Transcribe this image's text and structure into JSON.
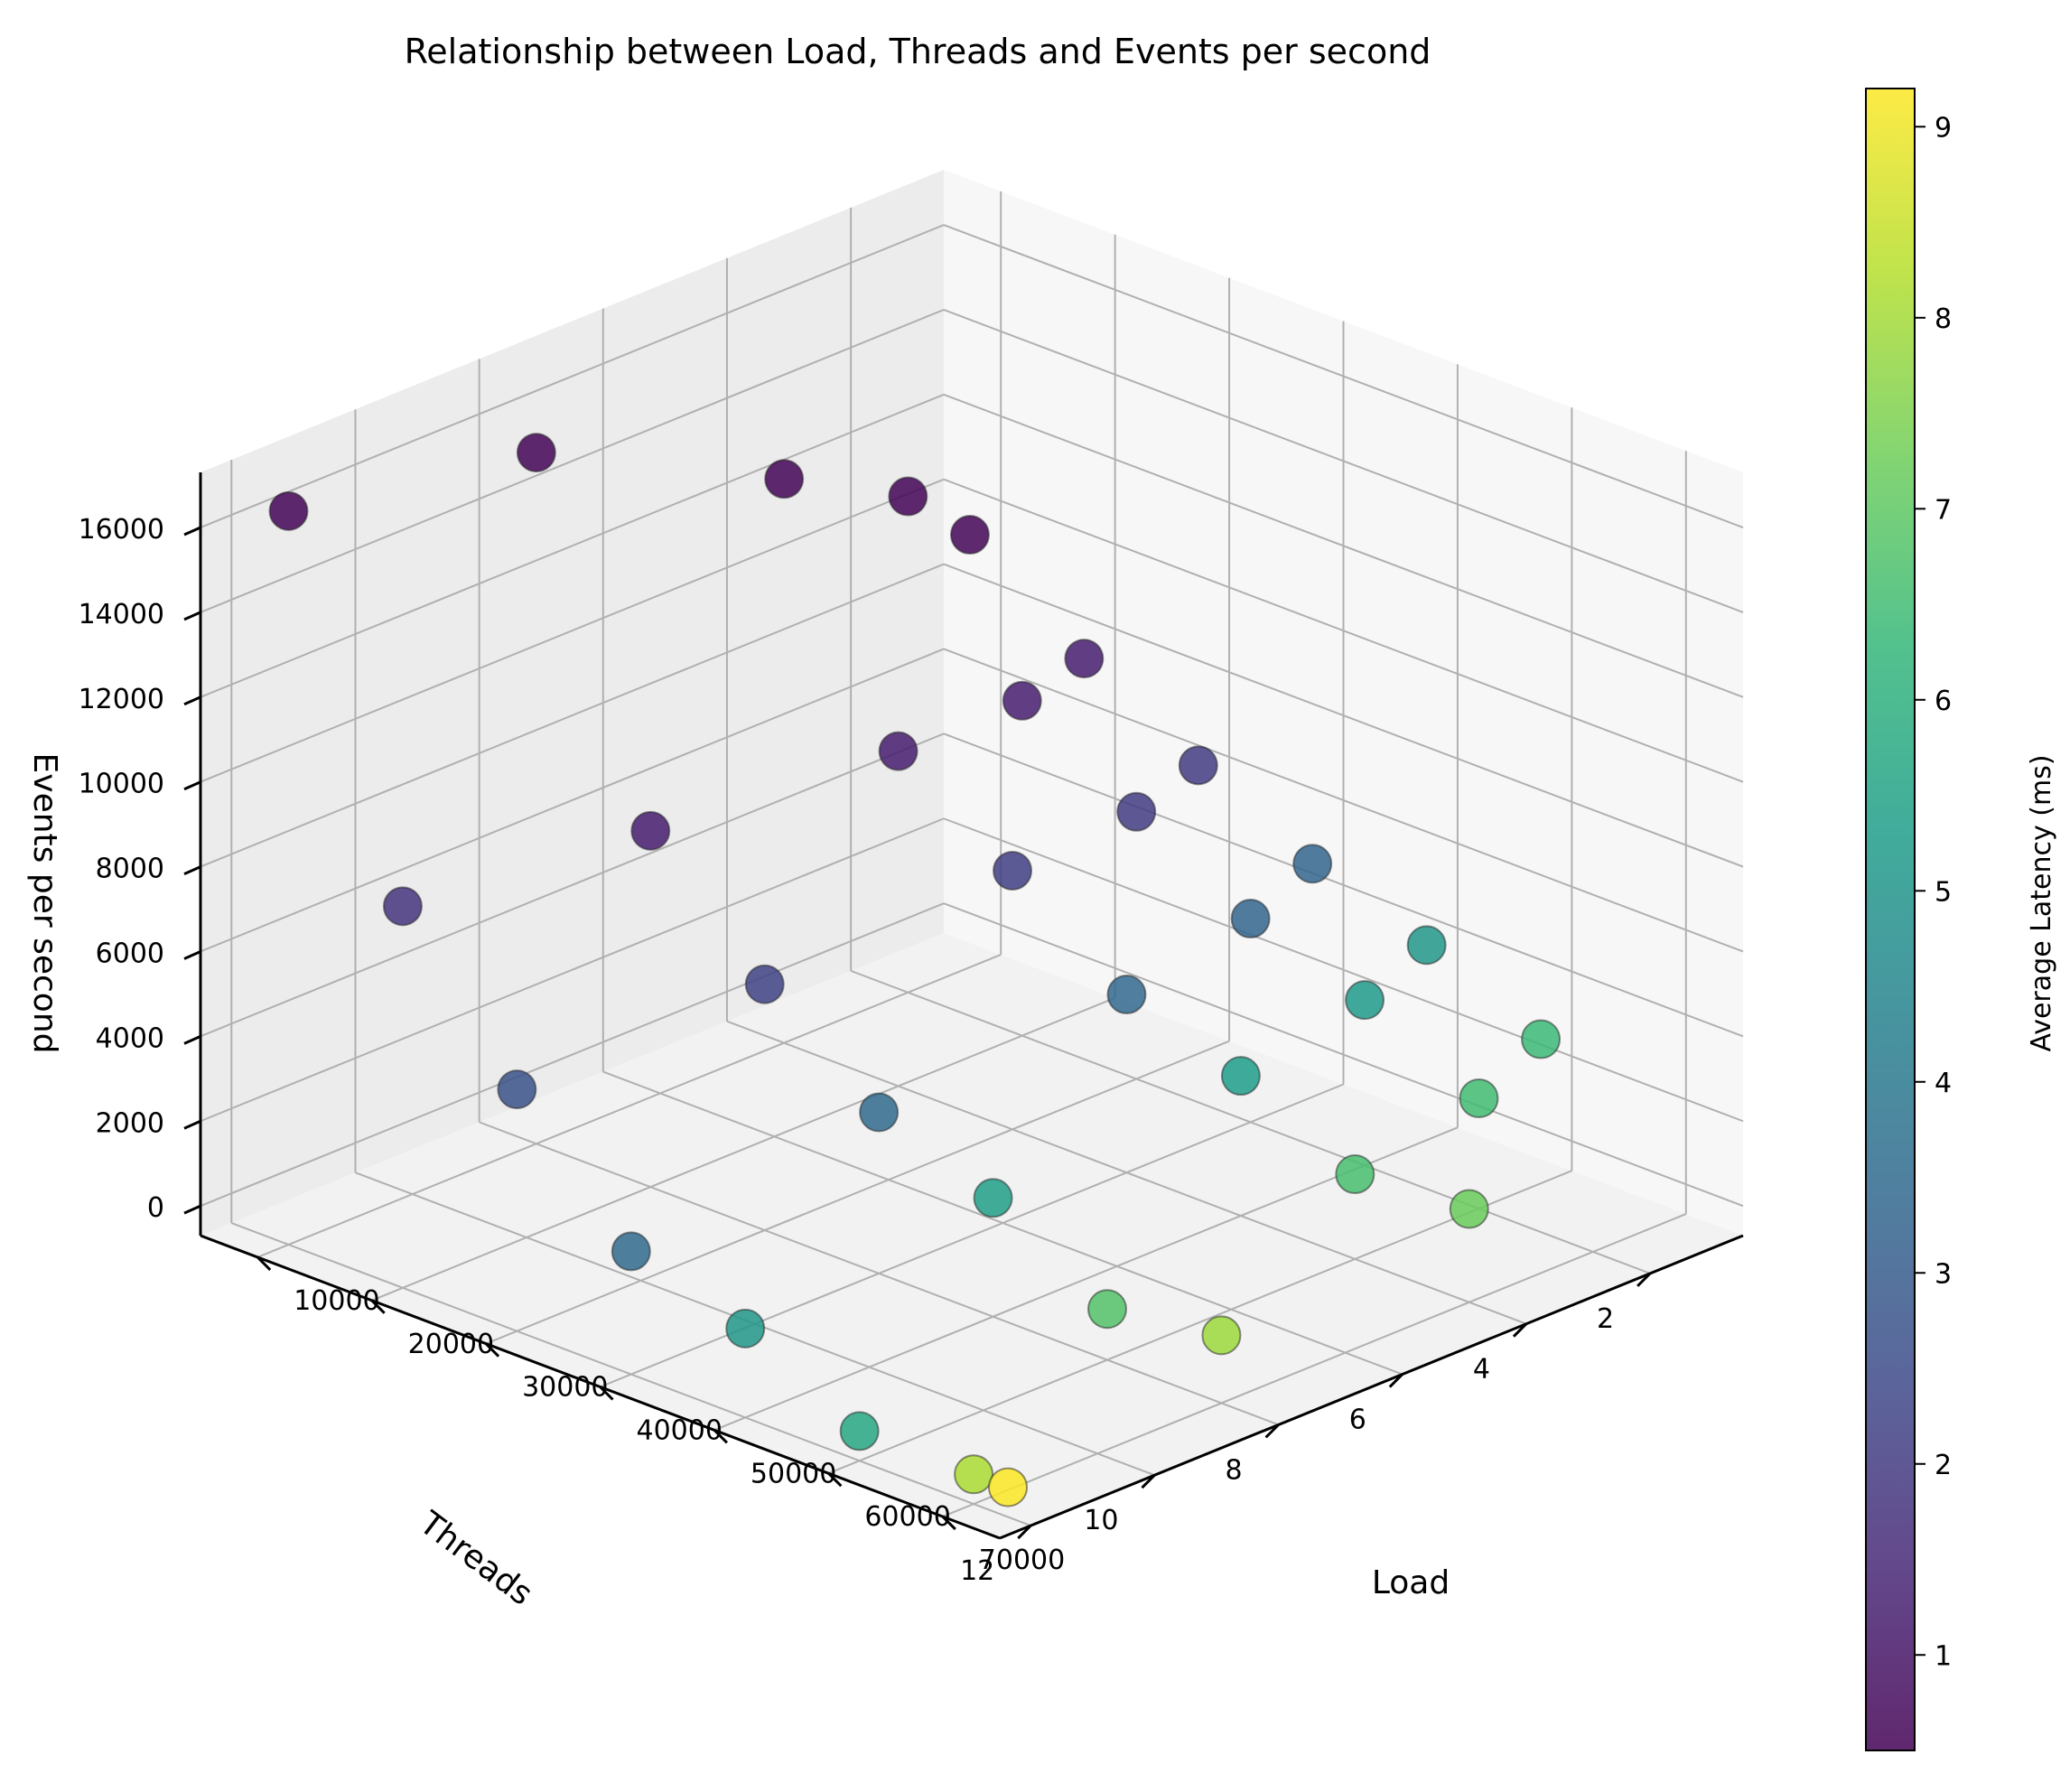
{
  "chart_data": {
    "type": "scatter",
    "title": "Relationship between Load, Threads and Events per second",
    "xlabel": "Load",
    "ylabel": "Threads",
    "zlabel": "Events per second",
    "colorbar_label": "Average Latency (ms)",
    "xlim": [
      5000,
      75000
    ],
    "ylim": [
      0.5,
      12.5
    ],
    "zlim": [
      -700,
      17300
    ],
    "clim": [
      0.5,
      9.2
    ],
    "x_ticks": [
      10000,
      20000,
      30000,
      40000,
      50000,
      60000,
      70000
    ],
    "y_ticks": [
      2,
      4,
      6,
      8,
      10,
      12
    ],
    "z_ticks": [
      0,
      2000,
      4000,
      6000,
      8000,
      10000,
      12000,
      14000,
      16000
    ],
    "colorbar_ticks": [
      1,
      2,
      3,
      4,
      5,
      6,
      7,
      8,
      9
    ],
    "grid": true,
    "colormap": "viridis",
    "series": [
      {
        "points": [
          {
            "x": 10000,
            "y": 1,
            "z": 9500,
            "c": 0.6
          },
          {
            "x": 10000,
            "y": 2,
            "z": 11000,
            "c": 0.6
          },
          {
            "x": 10000,
            "y": 4,
            "z": 12600,
            "c": 0.6
          },
          {
            "x": 10000,
            "y": 8,
            "z": 15600,
            "c": 0.6
          },
          {
            "x": 10000,
            "y": 12,
            "z": 16600,
            "c": 0.6
          },
          {
            "x": 20000,
            "y": 1,
            "z": 7600,
            "c": 1.2
          },
          {
            "x": 20000,
            "y": 2,
            "z": 7200,
            "c": 1.2
          },
          {
            "x": 20000,
            "y": 4,
            "z": 7200,
            "c": 1.2
          },
          {
            "x": 20000,
            "y": 8,
            "z": 7700,
            "c": 1.2
          },
          {
            "x": 20000,
            "y": 12,
            "z": 8300,
            "c": 1.8
          },
          {
            "x": 30000,
            "y": 1,
            "z": 6100,
            "c": 2.0
          },
          {
            "x": 30000,
            "y": 2,
            "z": 5600,
            "c": 2.0
          },
          {
            "x": 30000,
            "y": 4,
            "z": 5400,
            "c": 2.1
          },
          {
            "x": 30000,
            "y": 8,
            "z": 5100,
            "c": 2.2
          },
          {
            "x": 30000,
            "y": 12,
            "z": 5000,
            "c": 2.7
          },
          {
            "x": 40000,
            "y": 1,
            "z": 4800,
            "c": 3.3
          },
          {
            "x": 40000,
            "y": 2,
            "z": 4100,
            "c": 3.3
          },
          {
            "x": 40000,
            "y": 4,
            "z": 3500,
            "c": 3.4
          },
          {
            "x": 40000,
            "y": 8,
            "z": 3100,
            "c": 3.5
          },
          {
            "x": 40000,
            "y": 12,
            "z": 2200,
            "c": 3.5
          },
          {
            "x": 50000,
            "y": 1,
            "z": 3900,
            "c": 5.1
          },
          {
            "x": 50000,
            "y": 2,
            "z": 3200,
            "c": 5.2
          },
          {
            "x": 50000,
            "y": 4,
            "z": 2600,
            "c": 5.3
          },
          {
            "x": 50000,
            "y": 8,
            "z": 2100,
            "c": 5.4
          },
          {
            "x": 50000,
            "y": 12,
            "z": 1400,
            "c": 5.1
          },
          {
            "x": 60000,
            "y": 1,
            "z": 2700,
            "c": 6.4
          },
          {
            "x": 60000,
            "y": 2,
            "z": 1900,
            "c": 6.5
          },
          {
            "x": 60000,
            "y": 4,
            "z": 1300,
            "c": 6.6
          },
          {
            "x": 60000,
            "y": 8,
            "z": 500,
            "c": 6.8
          },
          {
            "x": 60000,
            "y": 12,
            "z": 0,
            "c": 5.7
          },
          {
            "x": 70000,
            "y": 4,
            "z": 1500,
            "c": 7.2
          },
          {
            "x": 70000,
            "y": 8,
            "z": 900,
            "c": 7.9
          },
          {
            "x": 70000,
            "y": 12,
            "z": 0,
            "c": 8.1
          },
          {
            "x": 73000,
            "y": 12,
            "z": 0,
            "c": 9.2
          }
        ]
      }
    ]
  }
}
